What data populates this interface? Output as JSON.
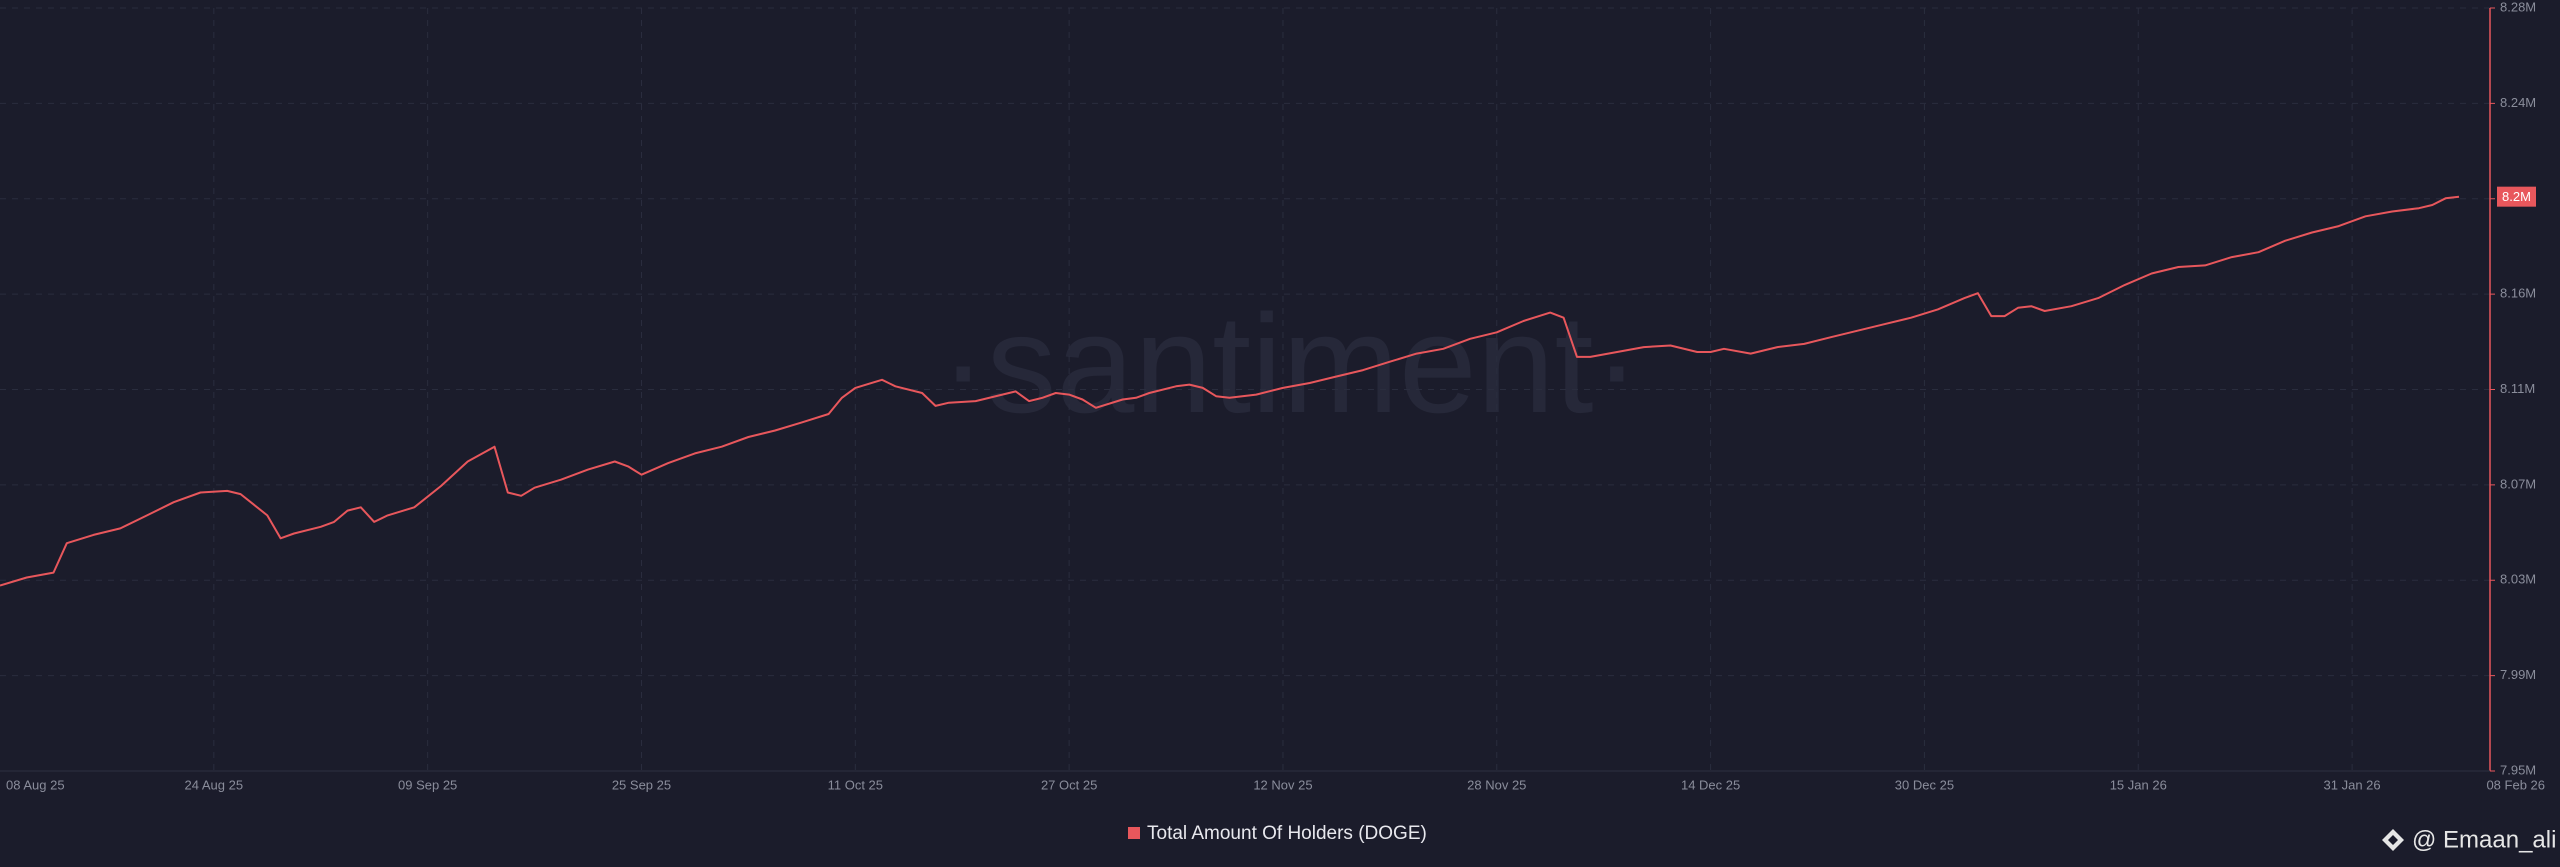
{
  "chart_data": {
    "type": "line",
    "watermark": "·santiment·",
    "credit": "@ Emaan_ali",
    "x": [
      "2025-08-08",
      "2025-08-10",
      "2025-08-12",
      "2025-08-13",
      "2025-08-15",
      "2025-08-17",
      "2025-08-19",
      "2025-08-21",
      "2025-08-23",
      "2025-08-25",
      "2025-08-26",
      "2025-08-28",
      "2025-08-29",
      "2025-08-30",
      "2025-09-01",
      "2025-09-02",
      "2025-09-03",
      "2025-09-04",
      "2025-09-05",
      "2025-09-06",
      "2025-09-08",
      "2025-09-10",
      "2025-09-12",
      "2025-09-14",
      "2025-09-15",
      "2025-09-16",
      "2025-09-17",
      "2025-09-19",
      "2025-09-21",
      "2025-09-23",
      "2025-09-24",
      "2025-09-25",
      "2025-09-27",
      "2025-09-29",
      "2025-10-01",
      "2025-10-03",
      "2025-10-05",
      "2025-10-07",
      "2025-10-09",
      "2025-10-10",
      "2025-10-11",
      "2025-10-13",
      "2025-10-14",
      "2025-10-16",
      "2025-10-17",
      "2025-10-18",
      "2025-10-20",
      "2025-10-22",
      "2025-10-23",
      "2025-10-24",
      "2025-10-25",
      "2025-10-26",
      "2025-10-27",
      "2025-10-28",
      "2025-10-29",
      "2025-10-31",
      "2025-11-01",
      "2025-11-02",
      "2025-11-04",
      "2025-11-05",
      "2025-11-06",
      "2025-11-07",
      "2025-11-08",
      "2025-11-10",
      "2025-11-12",
      "2025-11-14",
      "2025-11-16",
      "2025-11-18",
      "2025-11-20",
      "2025-11-22",
      "2025-11-24",
      "2025-11-26",
      "2025-11-28",
      "2025-11-30",
      "2025-12-02",
      "2025-12-03",
      "2025-12-04",
      "2025-12-05",
      "2025-12-07",
      "2025-12-09",
      "2025-12-11",
      "2025-12-13",
      "2025-12-14",
      "2025-12-15",
      "2025-12-17",
      "2025-12-19",
      "2025-12-21",
      "2025-12-23",
      "2025-12-25",
      "2025-12-27",
      "2025-12-29",
      "2025-12-31",
      "2026-01-02",
      "2026-01-03",
      "2026-01-04",
      "2026-01-05",
      "2026-01-06",
      "2026-01-07",
      "2026-01-08",
      "2026-01-10",
      "2026-01-12",
      "2026-01-14",
      "2026-01-16",
      "2026-01-18",
      "2026-01-20",
      "2026-01-22",
      "2026-01-24",
      "2026-01-26",
      "2026-01-28",
      "2026-01-30",
      "2026-02-01",
      "2026-02-03",
      "2026-02-05",
      "2026-02-06",
      "2026-02-07",
      "2026-02-08"
    ],
    "series": [
      {
        "name": "Total Amount Of Holders (DOGE)",
        "color": "#e8575c",
        "values": [
          8030100,
          8033600,
          8035700,
          8048400,
          8052000,
          8054800,
          8060400,
          8066100,
          8070300,
          8071000,
          8069600,
          8060400,
          8050500,
          8052600,
          8055500,
          8057600,
          8062500,
          8063900,
          8057600,
          8060400,
          8063900,
          8073100,
          8083700,
          8090100,
          8070300,
          8068900,
          8072400,
          8075900,
          8080200,
          8083700,
          8081600,
          8078000,
          8083000,
          8087200,
          8090100,
          8094300,
          8097100,
          8100600,
          8104200,
          8111200,
          8115500,
          8119000,
          8116200,
          8113300,
          8107700,
          8109100,
          8109800,
          8112600,
          8114000,
          8109800,
          8111200,
          8113300,
          8112600,
          8110500,
          8106900,
          8110500,
          8111200,
          8113300,
          8116200,
          8116900,
          8115500,
          8111900,
          8111200,
          8112600,
          8115500,
          8117600,
          8120400,
          8123200,
          8126800,
          8130300,
          8132400,
          8136700,
          8139500,
          8144400,
          8148000,
          8145800,
          8128900,
          8128900,
          8131000,
          8133100,
          8133800,
          8131000,
          8131000,
          8132400,
          8130300,
          8133100,
          8134500,
          8137400,
          8140200,
          8143000,
          8145800,
          8149400,
          8154300,
          8156400,
          8146500,
          8146500,
          8150100,
          8150800,
          8148700,
          8150800,
          8154300,
          8160000,
          8164900,
          8167700,
          8168400,
          8172000,
          8174100,
          8179100,
          8182600,
          8185400,
          8189600,
          8191700,
          8193100,
          8194500,
          8197400,
          8198100
        ],
        "value_labels": [
          null,
          null,
          null,
          null,
          null,
          null,
          null,
          null,
          null,
          null,
          null,
          null,
          null,
          null,
          null,
          null,
          null,
          null,
          null,
          null,
          null,
          null,
          null,
          null,
          null,
          null,
          null,
          null,
          null,
          null,
          null,
          null,
          null,
          null,
          null,
          null,
          null,
          null,
          null,
          null,
          null,
          null,
          null,
          null,
          null,
          null,
          null,
          null,
          null,
          null,
          null,
          null,
          null,
          null,
          null,
          null,
          null,
          null,
          null,
          null,
          null,
          null,
          null,
          null,
          null,
          null,
          null,
          null,
          null,
          null,
          null,
          null,
          null,
          null,
          null,
          null,
          null,
          null,
          null,
          null,
          null,
          null,
          null,
          null,
          null,
          null,
          null,
          null,
          null,
          null,
          null,
          null,
          null,
          null,
          null,
          null,
          null,
          null,
          null,
          null,
          null,
          null,
          null,
          null,
          null,
          null,
          null,
          null,
          null,
          null,
          null,
          null,
          null,
          null,
          null,
          "8.2M"
        ]
      }
    ],
    "xlim": [
      "2025-08-08",
      "2026-02-08"
    ],
    "xticks": [
      {
        "value": "2025-08-08",
        "label": "08 Aug 25"
      },
      {
        "value": "2025-08-24",
        "label": "24 Aug 25"
      },
      {
        "value": "2025-09-09",
        "label": "09 Sep 25"
      },
      {
        "value": "2025-09-25",
        "label": "25 Sep 25"
      },
      {
        "value": "2025-10-11",
        "label": "11 Oct 25"
      },
      {
        "value": "2025-10-27",
        "label": "27 Oct 25"
      },
      {
        "value": "2025-11-12",
        "label": "12 Nov 25"
      },
      {
        "value": "2025-11-28",
        "label": "28 Nov 25"
      },
      {
        "value": "2025-12-14",
        "label": "14 Dec 25"
      },
      {
        "value": "2025-12-30",
        "label": "30 Dec 25"
      },
      {
        "value": "2026-01-15",
        "label": "15 Jan 26"
      },
      {
        "value": "2026-01-31",
        "label": "31 Jan 26"
      },
      {
        "value": "2026-02-08",
        "label": "08 Feb 26"
      }
    ],
    "ylim": [
      7950000,
      8279600
    ],
    "yticks": [
      {
        "value": 7950000,
        "label": "7.95M"
      },
      {
        "value": 7991200,
        "label": "7.99M"
      },
      {
        "value": 8032400,
        "label": "8.03M"
      },
      {
        "value": 8073600,
        "label": "8.07M"
      },
      {
        "value": 8114800,
        "label": "8.11M"
      },
      {
        "value": 8156000,
        "label": "8.16M"
      },
      {
        "value": 8197200,
        "label": "8.2M"
      },
      {
        "value": 8238400,
        "label": "8.24M"
      },
      {
        "value": 8279600,
        "label": "8.28M"
      }
    ],
    "grid": true
  }
}
